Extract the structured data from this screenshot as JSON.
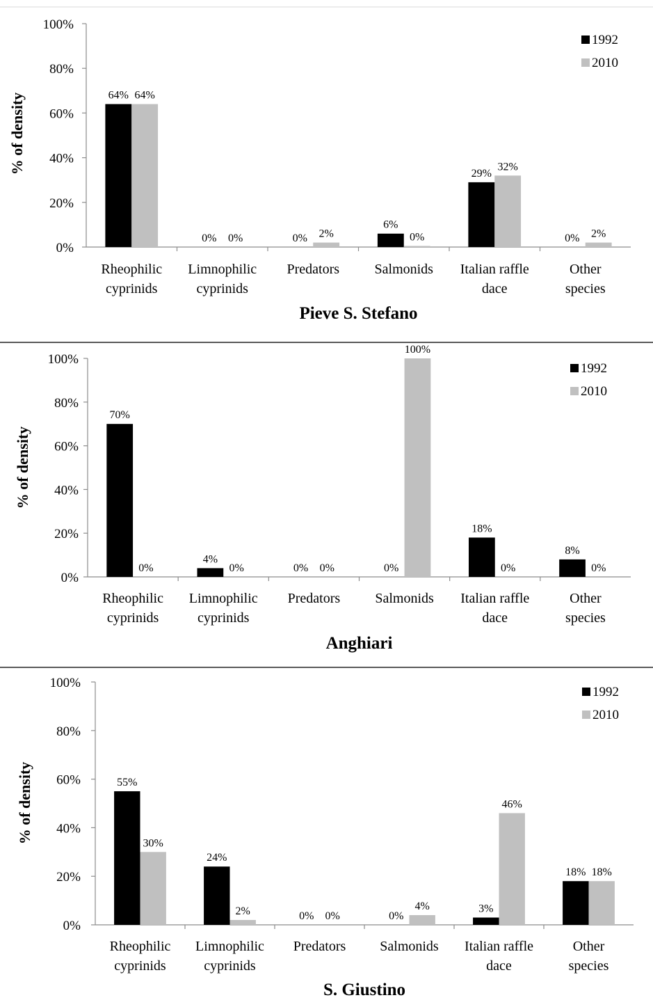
{
  "chart_data": [
    {
      "type": "bar",
      "title": "Pieve S. Stefano",
      "ylabel": "% of density",
      "ylim": [
        0,
        100
      ],
      "yticks": [
        "0%",
        "20%",
        "40%",
        "60%",
        "80%",
        "100%"
      ],
      "categories": [
        [
          "Rheophilic",
          "cyprinids"
        ],
        [
          "Limnophilic",
          "cyprinids"
        ],
        [
          "Predators"
        ],
        [
          "Salmonids"
        ],
        [
          "Italian raffle",
          "dace"
        ],
        [
          "Other",
          "species"
        ]
      ],
      "legend_position": "top-right",
      "series": [
        {
          "name": "1992",
          "color": "#000000",
          "values": [
            64,
            0,
            0,
            6,
            29,
            0
          ],
          "labels": [
            "64%",
            "0%",
            "0%",
            "6%",
            "29%",
            "0%"
          ]
        },
        {
          "name": "2010",
          "color": "#c0c0c0",
          "values": [
            64,
            0,
            2,
            0.5,
            32,
            2
          ],
          "labels": [
            "64%",
            "0%",
            "2%",
            "0%",
            "32%",
            "2%"
          ]
        }
      ]
    },
    {
      "type": "bar",
      "title": "Anghiari",
      "ylabel": "% of density",
      "ylim": [
        0,
        100
      ],
      "yticks": [
        "0%",
        "20%",
        "40%",
        "60%",
        "80%",
        "100%"
      ],
      "categories": [
        [
          "Rheophilic",
          "cyprinids"
        ],
        [
          "Limnophilic",
          "cyprinids"
        ],
        [
          "Predators"
        ],
        [
          "Salmonids"
        ],
        [
          "Italian raffle",
          "dace"
        ],
        [
          "Other",
          "species"
        ]
      ],
      "legend_position": "top-right",
      "series": [
        {
          "name": "1992",
          "color": "#000000",
          "values": [
            70,
            4,
            0,
            0,
            18,
            8
          ],
          "labels": [
            "70%",
            "4%",
            "0%",
            "0%",
            "18%",
            "8%"
          ]
        },
        {
          "name": "2010",
          "color": "#c0c0c0",
          "values": [
            0,
            0,
            0,
            100,
            0,
            0
          ],
          "labels": [
            "0%",
            "0%",
            "0%",
            "100%",
            "0%",
            "0%"
          ]
        }
      ]
    },
    {
      "type": "bar",
      "title": "S. Giustino",
      "ylabel": "% of density",
      "ylim": [
        0,
        100
      ],
      "yticks": [
        "0%",
        "20%",
        "40%",
        "60%",
        "80%",
        "100%"
      ],
      "categories": [
        [
          "Rheophilic",
          "cyprinids"
        ],
        [
          "Limnophilic",
          "cyprinids"
        ],
        [
          "Predators"
        ],
        [
          "Salmonids"
        ],
        [
          "Italian raffle",
          "dace"
        ],
        [
          "Other",
          "species"
        ]
      ],
      "legend_position": "top-right",
      "series": [
        {
          "name": "1992",
          "color": "#000000",
          "values": [
            55,
            24,
            0,
            0,
            3,
            18
          ],
          "labels": [
            "55%",
            "24%",
            "0%",
            "0%",
            "3%",
            "18%"
          ]
        },
        {
          "name": "2010",
          "color": "#c0c0c0",
          "values": [
            30,
            2,
            0,
            4,
            46,
            18
          ],
          "labels": [
            "30%",
            "2%",
            "0%",
            "4%",
            "46%",
            "18%"
          ]
        }
      ]
    }
  ]
}
